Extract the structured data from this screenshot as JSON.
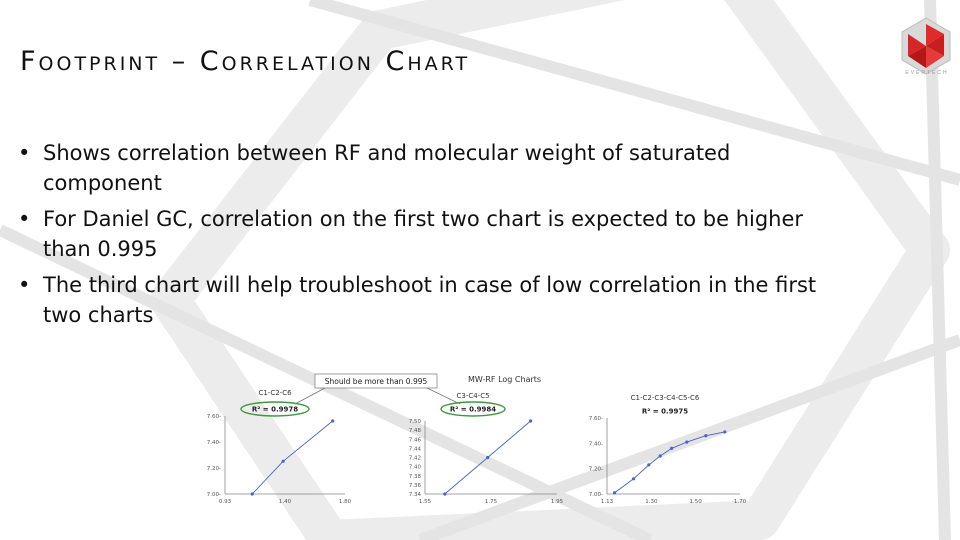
{
  "slide": {
    "title": "Footprint – Correlation Chart",
    "logo_text": "EVERTECH",
    "bullets": [
      "Shows correlation between RF and molecular weight of saturated component",
      "For Daniel GC, correlation on the first two chart is expected to be higher than 0.995",
      "The third chart will help troubleshoot in case of low correlation in the first two charts"
    ]
  },
  "figure": {
    "heading": "MW-RF Log Charts",
    "callout": "Should be more than 0.995",
    "colors": {
      "line": "#4a63c8",
      "ellipse": "#3c9a3c",
      "axis": "#888888"
    }
  },
  "chart_data": [
    {
      "type": "line",
      "title": "C1-C2-C6",
      "annotation": "R² = 0.9978",
      "x": [
        1.15,
        1.4,
        1.8
      ],
      "y": [
        7.0,
        7.26,
        7.58
      ],
      "xticks": [
        "0.93",
        "1.40",
        "1.80"
      ],
      "yticks": [
        "7.00",
        "7.20",
        "7.40",
        "7.60"
      ],
      "xlim": [
        0.93,
        1.9
      ],
      "ylim": [
        7.0,
        7.62
      ]
    },
    {
      "type": "line",
      "title": "C3-C4-C5",
      "annotation": "R² = 0.9984",
      "x": [
        1.61,
        1.74,
        1.87
      ],
      "y": [
        7.34,
        7.42,
        7.5
      ],
      "xticks": [
        "1.55",
        "1.75",
        "1.95"
      ],
      "yticks": [
        "7.34",
        "7.36",
        "7.38",
        "7.40",
        "7.42",
        "7.44",
        "7.46",
        "7.48",
        "7.50"
      ],
      "xlim": [
        1.55,
        1.95
      ],
      "ylim": [
        7.34,
        7.5
      ]
    },
    {
      "type": "line",
      "title": "C1-C2-C3-C4-C5-C6",
      "annotation": "R² = 0.9975",
      "x": [
        1.14,
        1.24,
        1.32,
        1.38,
        1.44,
        1.52,
        1.62,
        1.72
      ],
      "y": [
        7.01,
        7.12,
        7.23,
        7.3,
        7.36,
        7.41,
        7.46,
        7.49
      ],
      "xticks": [
        "1.13",
        "1.30",
        "1.50",
        "1.70"
      ],
      "yticks": [
        "7.00",
        "7.20",
        "7.40",
        "7.60"
      ],
      "xlim": [
        1.1,
        1.8
      ],
      "ylim": [
        7.0,
        7.6
      ]
    }
  ]
}
